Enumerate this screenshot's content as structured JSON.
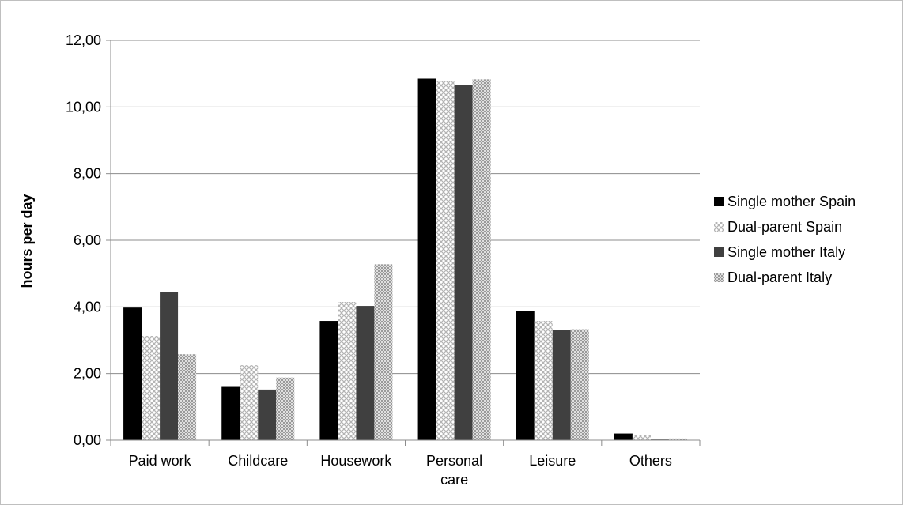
{
  "chart_data": {
    "type": "bar",
    "title": "",
    "xlabel": "",
    "ylabel": "hours per day",
    "ylim": [
      0,
      12
    ],
    "y_ticks": [
      "0,00",
      "2,00",
      "4,00",
      "6,00",
      "8,00",
      "10,00",
      "12,00"
    ],
    "grid": true,
    "legend_position": "right",
    "categories": [
      [
        "Paid work"
      ],
      [
        "Childcare"
      ],
      [
        "Housework"
      ],
      [
        "Personal",
        "care"
      ],
      [
        "Leisure"
      ],
      [
        "Others"
      ]
    ],
    "series": [
      {
        "name": "Single mother Spain",
        "values": [
          3.98,
          1.6,
          3.58,
          10.85,
          3.88,
          0.2
        ],
        "color": "#000000",
        "pattern": "solid"
      },
      {
        "name": "Dual-parent Spain",
        "values": [
          3.13,
          2.25,
          4.15,
          10.77,
          3.58,
          0.15
        ],
        "color": "#d9d9d9",
        "pattern": "crosshatch"
      },
      {
        "name": "Single mother Italy",
        "values": [
          4.45,
          1.52,
          4.03,
          10.67,
          3.32,
          0.02
        ],
        "color": "#404040",
        "pattern": "solid"
      },
      {
        "name": "Dual-parent Italy",
        "values": [
          2.58,
          1.88,
          5.28,
          10.83,
          3.33,
          0.05
        ],
        "color": "#bfbfbf",
        "pattern": "dots"
      }
    ]
  }
}
